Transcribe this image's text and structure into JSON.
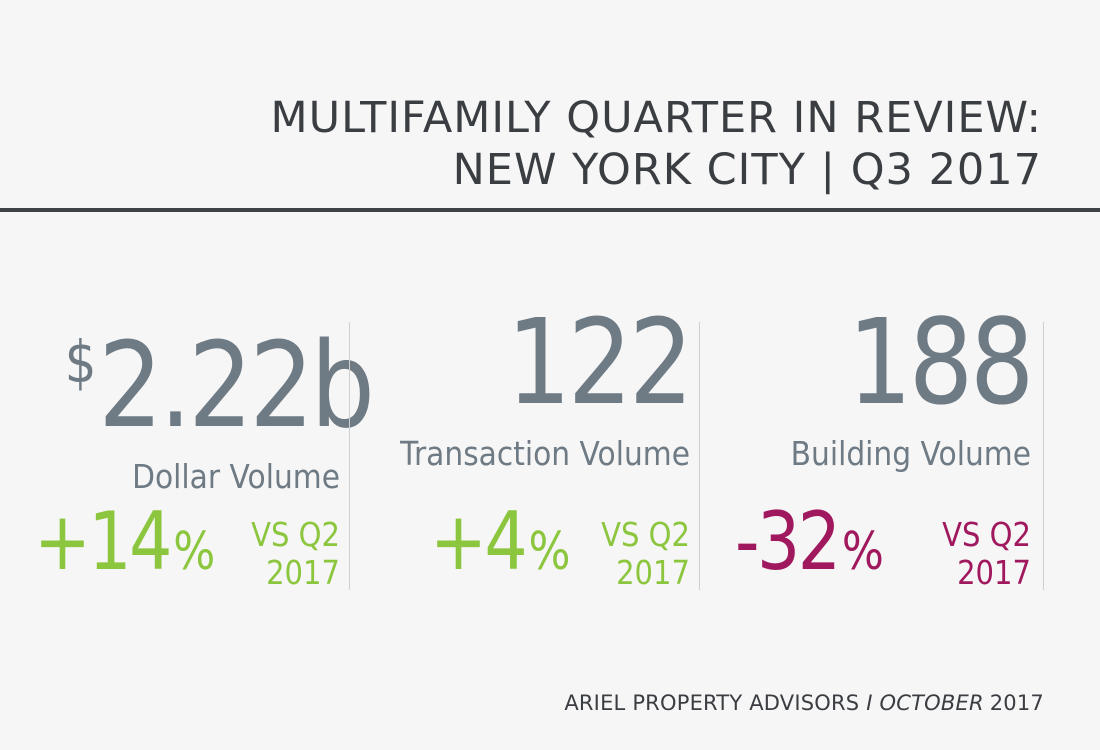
{
  "header": {
    "title_line1": "MULTIFAMILY QUARTER IN REVIEW:",
    "title_line2": "NEW YORK CITY | Q3 2017"
  },
  "stats": [
    {
      "currency": "$",
      "value": "2.22b",
      "label": "Dollar Volume",
      "change": "+14",
      "percent_sign": "%",
      "comparison_line1": "VS Q2",
      "comparison_line2": "2017",
      "color": "#8cc63e"
    },
    {
      "value": "122",
      "label": "Transaction Volume",
      "change": "+4",
      "percent_sign": "%",
      "comparison_line1": "VS Q2",
      "comparison_line2": "2017",
      "color": "#8cc63e"
    },
    {
      "value": "188",
      "label": "Building Volume",
      "change": "-32",
      "percent_sign": "%",
      "comparison_line1": "VS Q2",
      "comparison_line2": "2017",
      "color": "#a0185d"
    }
  ],
  "footer": {
    "company": "ARIEL PROPERTY ADVISORS",
    "separator": "I",
    "month": "OCTOBER",
    "year": "2017"
  },
  "colors": {
    "number_gray": "#6e7a84",
    "title_dark": "#3a3d41",
    "positive_green": "#8cc63e",
    "negative_magenta": "#a0185d",
    "background": "#f6f6f6"
  }
}
